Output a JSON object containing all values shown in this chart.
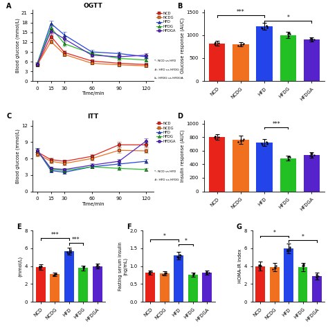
{
  "categories": [
    "NCD",
    "NCDG",
    "HFD",
    "HFDG",
    "HFDGA"
  ],
  "bar_colors": [
    "#e8231a",
    "#f07020",
    "#2244e8",
    "#22c022",
    "#5522cc"
  ],
  "line_colors": [
    "#e8231a",
    "#f07020",
    "#2244e8",
    "#22c022",
    "#5522cc"
  ],
  "line_markers": [
    "s",
    "s",
    "^",
    "^",
    "o"
  ],
  "ogtt_time": [
    0,
    15,
    30,
    60,
    90,
    120
  ],
  "ogtt_data": {
    "NCD": [
      5.0,
      13.8,
      8.8,
      6.2,
      5.5,
      5.1
    ],
    "NCDG": [
      5.0,
      12.2,
      8.2,
      5.5,
      5.0,
      4.7
    ],
    "HFD": [
      5.5,
      17.8,
      14.2,
      9.0,
      8.5,
      7.5
    ],
    "HFDG": [
      5.5,
      16.5,
      11.5,
      8.5,
      7.0,
      6.5
    ],
    "HFDGA": [
      5.2,
      15.5,
      13.0,
      8.0,
      7.5,
      8.0
    ]
  },
  "ogtt_err": {
    "NCD": [
      0.3,
      0.7,
      0.6,
      0.4,
      0.4,
      0.3
    ],
    "NCDG": [
      0.3,
      0.6,
      0.5,
      0.4,
      0.3,
      0.3
    ],
    "HFD": [
      0.4,
      0.8,
      0.9,
      0.7,
      0.6,
      0.5
    ],
    "HFDG": [
      0.4,
      0.7,
      0.8,
      0.6,
      0.5,
      0.4
    ],
    "HFDGA": [
      0.3,
      0.7,
      0.8,
      0.5,
      0.5,
      0.5
    ]
  },
  "itt_time": [
    0,
    15,
    30,
    60,
    90,
    120
  ],
  "itt_data": {
    "NCD": [
      7.2,
      5.8,
      5.5,
      6.4,
      8.5,
      8.5
    ],
    "NCDG": [
      6.8,
      5.5,
      5.1,
      6.0,
      7.5,
      7.4
    ],
    "HFD": [
      7.5,
      3.8,
      3.5,
      4.5,
      5.0,
      5.5
    ],
    "HFDG": [
      7.5,
      4.0,
      3.8,
      4.5,
      4.2,
      4.0
    ],
    "HFDGA": [
      7.5,
      4.2,
      4.0,
      4.8,
      5.5,
      9.2
    ]
  },
  "itt_err": {
    "NCD": [
      0.4,
      0.4,
      0.3,
      0.4,
      0.5,
      0.5
    ],
    "NCDG": [
      0.4,
      0.4,
      0.3,
      0.4,
      0.5,
      0.4
    ],
    "HFD": [
      0.4,
      0.3,
      0.3,
      0.3,
      0.3,
      0.4
    ],
    "HFDG": [
      0.4,
      0.3,
      0.3,
      0.3,
      0.3,
      0.3
    ],
    "HFDGA": [
      0.4,
      0.3,
      0.3,
      0.3,
      0.4,
      0.5
    ]
  },
  "glucose_auc": [
    820,
    800,
    1190,
    1000,
    910
  ],
  "glucose_auc_err": [
    55,
    45,
    75,
    65,
    48
  ],
  "insulin_auc": [
    800,
    760,
    720,
    490,
    540
  ],
  "insulin_auc_err": [
    38,
    58,
    48,
    38,
    42
  ],
  "fasting_glucose": [
    3.9,
    3.1,
    5.7,
    3.8,
    4.0
  ],
  "fasting_glucose_err": [
    0.28,
    0.18,
    0.38,
    0.28,
    0.28
  ],
  "fasting_insulin": [
    0.82,
    0.8,
    1.3,
    0.76,
    0.82
  ],
  "fasting_insulin_err": [
    0.055,
    0.055,
    0.11,
    0.055,
    0.055
  ],
  "homa_ir": [
    4.0,
    3.9,
    6.0,
    3.9,
    2.9
  ],
  "homa_ir_err": [
    0.48,
    0.48,
    0.55,
    0.48,
    0.38
  ],
  "ogtt_title": "OGTT",
  "itt_title": "ITT",
  "legend_labels": [
    "NCD",
    "NCDG",
    "HFD",
    "HFDG",
    "HFDGA"
  ],
  "ogtt_legend_notes": [
    "*: NCD vs HFD",
    "#: HFD vs HFDG",
    "&: HFDG vs HFDGA"
  ],
  "itt_legend_notes": [
    "*: NCD vs HFD",
    "#: HFD vs HFDG"
  ],
  "panel_labels": [
    "A",
    "B",
    "C",
    "D",
    "E",
    "F",
    "G"
  ]
}
